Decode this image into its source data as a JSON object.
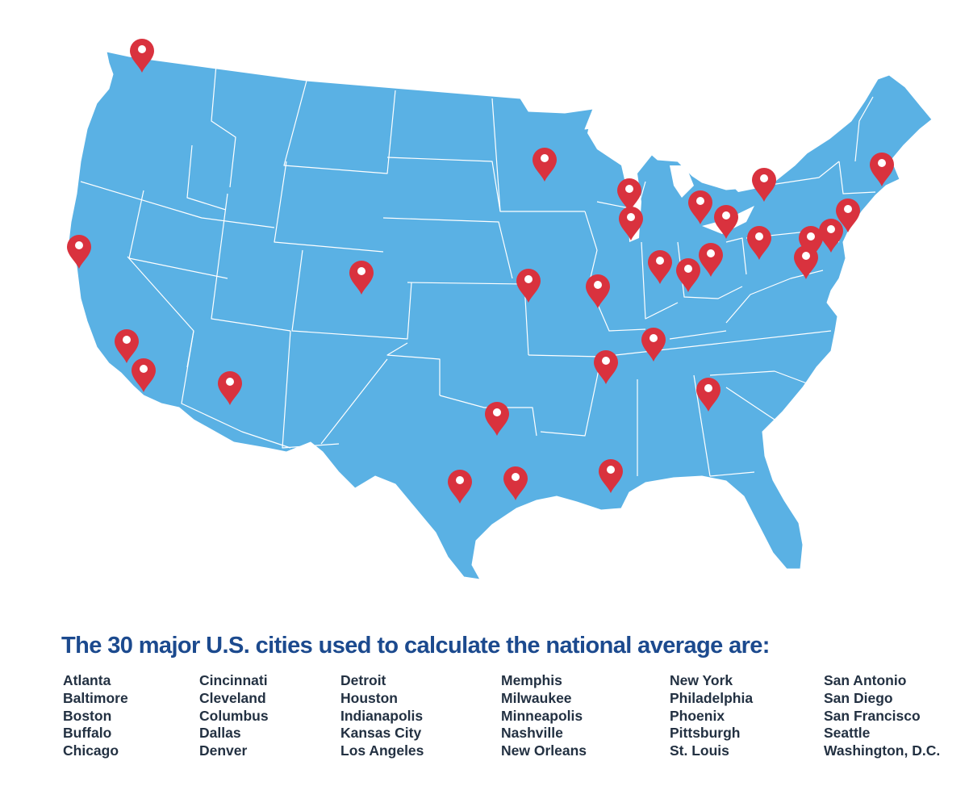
{
  "colors": {
    "land": "#5ab1e4",
    "border": "#ffffff",
    "marker": "#d9323e",
    "marker_dot": "#ffffff",
    "headline": "#1c4a8e",
    "city_text": "#233142"
  },
  "map": {
    "markers": [
      {
        "city": "Seattle",
        "icon": "map-pin-icon"
      },
      {
        "city": "San Francisco",
        "icon": "map-pin-icon"
      },
      {
        "city": "Los Angeles",
        "icon": "map-pin-icon"
      },
      {
        "city": "San Diego",
        "icon": "map-pin-icon"
      },
      {
        "city": "Phoenix",
        "icon": "map-pin-icon"
      },
      {
        "city": "Denver",
        "icon": "map-pin-icon"
      },
      {
        "city": "Dallas",
        "icon": "map-pin-icon"
      },
      {
        "city": "San Antonio",
        "icon": "map-pin-icon"
      },
      {
        "city": "Houston",
        "icon": "map-pin-icon"
      },
      {
        "city": "Minneapolis",
        "icon": "map-pin-icon"
      },
      {
        "city": "Kansas City",
        "icon": "map-pin-icon"
      },
      {
        "city": "St. Louis",
        "icon": "map-pin-icon"
      },
      {
        "city": "Memphis",
        "icon": "map-pin-icon"
      },
      {
        "city": "New Orleans",
        "icon": "map-pin-icon"
      },
      {
        "city": "Milwaukee",
        "icon": "map-pin-icon"
      },
      {
        "city": "Chicago",
        "icon": "map-pin-icon"
      },
      {
        "city": "Detroit",
        "icon": "map-pin-icon"
      },
      {
        "city": "Cleveland",
        "icon": "map-pin-icon"
      },
      {
        "city": "Indianapolis",
        "icon": "map-pin-icon"
      },
      {
        "city": "Cincinnati",
        "icon": "map-pin-icon"
      },
      {
        "city": "Columbus",
        "icon": "map-pin-icon"
      },
      {
        "city": "Nashville",
        "icon": "map-pin-icon"
      },
      {
        "city": "Atlanta",
        "icon": "map-pin-icon"
      },
      {
        "city": "Buffalo",
        "icon": "map-pin-icon"
      },
      {
        "city": "Pittsburgh",
        "icon": "map-pin-icon"
      },
      {
        "city": "Philadelphia",
        "icon": "map-pin-icon"
      },
      {
        "city": "Baltimore",
        "icon": "map-pin-icon"
      },
      {
        "city": "Washington, D.C.",
        "icon": "map-pin-icon"
      },
      {
        "city": "New York",
        "icon": "map-pin-icon"
      },
      {
        "city": "Boston",
        "icon": "map-pin-icon"
      }
    ]
  },
  "headline": "The 30 major U.S. cities used to calculate the national average are:",
  "city_columns": [
    [
      "Atlanta",
      "Baltimore",
      "Boston",
      "Buffalo",
      "Chicago"
    ],
    [
      "Cincinnati",
      "Cleveland",
      "Columbus",
      "Dallas",
      "Denver"
    ],
    [
      "Detroit",
      "Houston",
      "Indianapolis",
      "Kansas City",
      "Los Angeles"
    ],
    [
      "Memphis",
      "Milwaukee",
      "Minneapolis",
      "Nashville",
      "New Orleans"
    ],
    [
      "New York",
      "Philadelphia",
      "Phoenix",
      "Pittsburgh",
      "St. Louis"
    ],
    [
      "San Antonio",
      "San Diego",
      "San Francisco",
      "Seattle",
      "Washington, D.C."
    ]
  ]
}
